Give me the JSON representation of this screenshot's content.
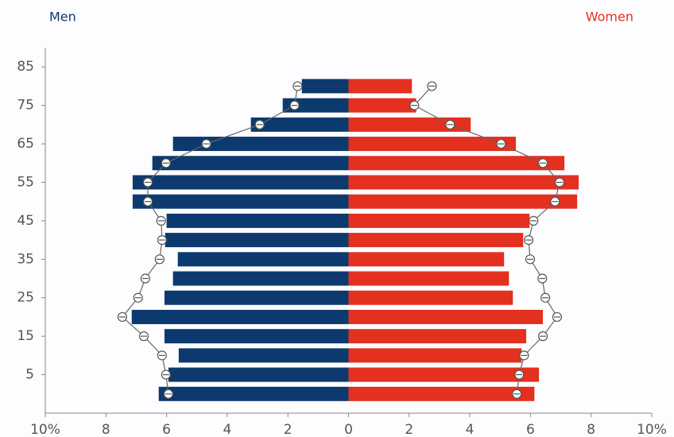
{
  "chart_data": {
    "type": "pyramid",
    "y": [
      0,
      5,
      10,
      15,
      20,
      25,
      30,
      35,
      40,
      45,
      50,
      55,
      60,
      65,
      70,
      75,
      80
    ],
    "series": [
      {
        "name": "Men",
        "color": "#0d3a6e",
        "side": "left",
        "values": [
          6.26,
          5.94,
          5.6,
          6.07,
          7.15,
          6.07,
          5.79,
          5.63,
          6.05,
          6.0,
          7.12,
          7.12,
          6.47,
          5.79,
          3.22,
          2.17,
          1.54
        ],
        "line_values": [
          5.94,
          6.02,
          6.15,
          6.75,
          7.46,
          6.94,
          6.7,
          6.23,
          6.15,
          6.18,
          6.62,
          6.62,
          6.02,
          4.69,
          2.93,
          1.78,
          1.68
        ]
      },
      {
        "name": "Women",
        "color": "#e3301f",
        "side": "right",
        "values": [
          6.13,
          6.28,
          5.71,
          5.86,
          6.41,
          5.42,
          5.29,
          5.13,
          5.76,
          5.97,
          7.54,
          7.59,
          7.12,
          5.52,
          4.03,
          2.23,
          2.09
        ],
        "line_values": [
          5.55,
          5.63,
          5.79,
          6.41,
          6.88,
          6.49,
          6.39,
          5.99,
          5.94,
          6.1,
          6.81,
          6.96,
          6.41,
          5.03,
          3.35,
          2.17,
          2.75
        ]
      }
    ],
    "xlim": [
      -10,
      10
    ],
    "xticks": [
      {
        "value": -10,
        "label": "10%"
      },
      {
        "value": -8,
        "label": "8"
      },
      {
        "value": -6,
        "label": "6"
      },
      {
        "value": -4,
        "label": "4"
      },
      {
        "value": -2,
        "label": "2"
      },
      0,
      2,
      4,
      6,
      8,
      {
        "value": 10,
        "label": "10%"
      }
    ],
    "ylim": [
      -5,
      90
    ],
    "yticks": [
      5,
      15,
      25,
      35,
      45,
      55,
      65,
      75,
      85
    ]
  }
}
